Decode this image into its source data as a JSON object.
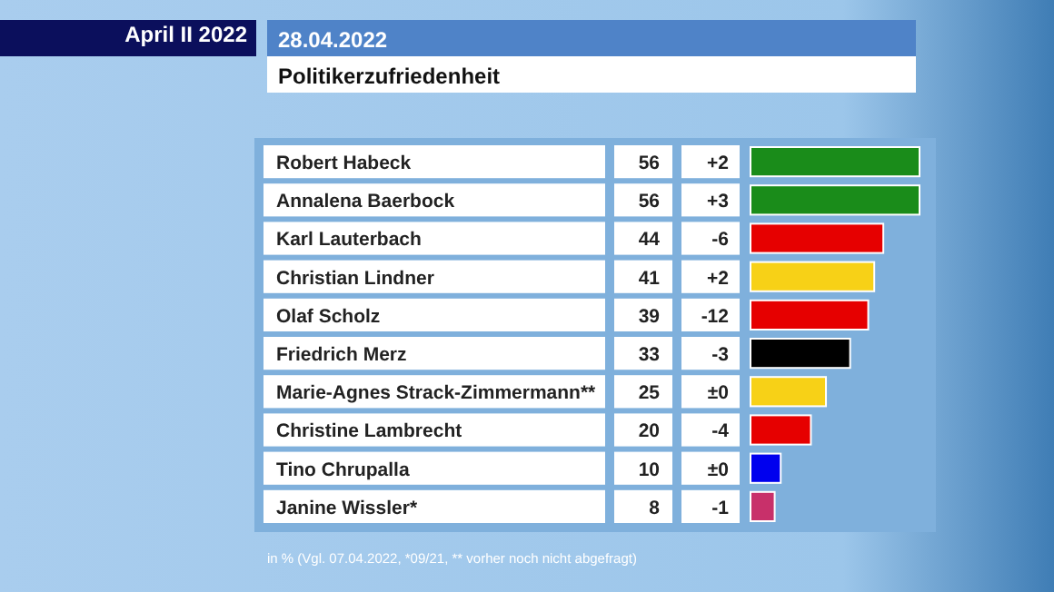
{
  "chart_data": {
    "type": "bar",
    "orientation": "horizontal",
    "title": "28.04.2022",
    "subtitle": "Politikerzufriedenheit",
    "categories": [
      "Robert Habeck",
      "Annalena Baerbock",
      "Karl Lauterbach",
      "Christian Lindner",
      "Olaf Scholz",
      "Friedrich Merz",
      "Marie-Agnes Strack-Zimmermann**",
      "Christine Lambrecht",
      "Tino Chrupalla",
      "Janine Wissler*"
    ],
    "values": [
      56,
      56,
      44,
      41,
      39,
      33,
      25,
      20,
      10,
      8
    ],
    "colors": [
      "#1a8c1a",
      "#1a8c1a",
      "#e60000",
      "#f7d117",
      "#e60000",
      "#000000",
      "#f7d117",
      "#e60000",
      "#0000ee",
      "#c8306a"
    ],
    "xlim": [
      0,
      56
    ],
    "data_labels": true,
    "tick_labels": "y",
    "annotations": [
      "April II 2022",
      "+2",
      "+3",
      "-6",
      "+2",
      "-12",
      "-3",
      "±0",
      "-4",
      "±0",
      "-1",
      "in % (Vgl. 07.04.2022, *09/21, ** vorher noch nicht abgefragt)"
    ]
  }
}
